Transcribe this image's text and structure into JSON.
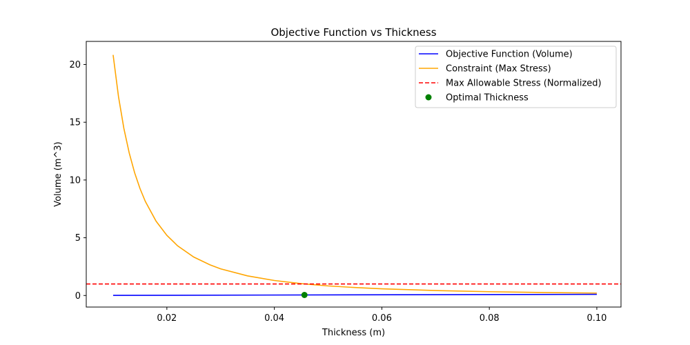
{
  "chart_data": {
    "type": "line",
    "title": "Objective Function vs Thickness",
    "xlabel": "Thickness (m)",
    "ylabel": "Volume (m^3)",
    "xlim": [
      0.005,
      0.1045
    ],
    "ylim": [
      -1.0,
      22.0
    ],
    "xticks": [
      0.02,
      0.04,
      0.06,
      0.08,
      0.1
    ],
    "xtick_labels": [
      "0.02",
      "0.04",
      "0.06",
      "0.08",
      "0.10"
    ],
    "yticks": [
      0,
      5,
      10,
      15,
      20
    ],
    "ytick_labels": [
      "0",
      "5",
      "10",
      "15",
      "20"
    ],
    "grid": false,
    "legend_position": "top-right",
    "series": [
      {
        "name": "Objective Function (Volume)",
        "kind": "line",
        "color": "#0000ff",
        "dash": "solid",
        "x": [
          0.01,
          0.1
        ],
        "y": [
          0.01,
          0.1
        ]
      },
      {
        "name": "Constraint (Max Stress)",
        "kind": "line",
        "color": "#ffa500",
        "dash": "solid",
        "x": [
          0.01,
          0.011,
          0.012,
          0.013,
          0.014,
          0.015,
          0.016,
          0.018,
          0.02,
          0.022,
          0.025,
          0.028,
          0.03,
          0.035,
          0.04,
          0.045,
          0.05,
          0.055,
          0.06,
          0.07,
          0.08,
          0.09,
          0.1
        ],
        "y": [
          20.83,
          17.22,
          14.47,
          12.33,
          10.63,
          9.26,
          8.14,
          6.43,
          5.21,
          4.3,
          3.33,
          2.66,
          2.31,
          1.7,
          1.3,
          1.03,
          0.83,
          0.69,
          0.58,
          0.43,
          0.33,
          0.26,
          0.21
        ]
      },
      {
        "name": "Max Allowable Stress (Normalized)",
        "kind": "hline",
        "color": "#ff0000",
        "dash": "dashed",
        "y": 1
      },
      {
        "name": "Optimal Thickness",
        "kind": "scatter",
        "color": "#008000",
        "x": [
          0.0456
        ],
        "y": [
          0.0456
        ]
      }
    ]
  }
}
